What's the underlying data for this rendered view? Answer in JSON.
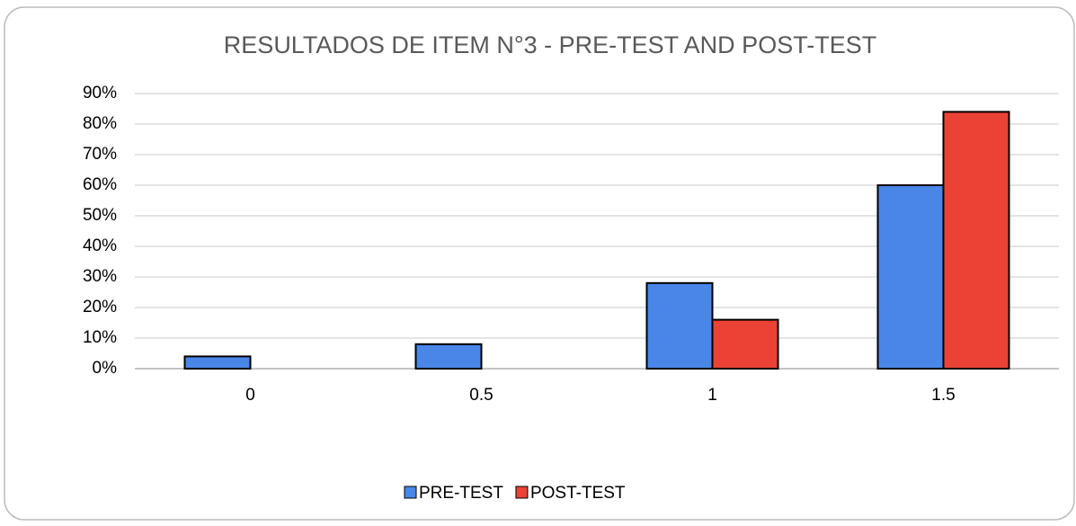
{
  "chart_data": {
    "type": "bar",
    "title": "RESULTADOS DE ITEM N°3 - PRE-TEST AND POST-TEST",
    "categories": [
      "0",
      "0.5",
      "1",
      "1.5"
    ],
    "series": [
      {
        "name": "PRE-TEST",
        "color": "#4a86e8",
        "values": [
          4,
          8,
          28,
          60
        ]
      },
      {
        "name": "POST-TEST",
        "color": "#ea4335",
        "values": [
          0,
          0,
          16,
          84
        ]
      }
    ],
    "ylim": [
      0,
      90
    ],
    "yticks": [
      {
        "value": 0,
        "label": "0%"
      },
      {
        "value": 10,
        "label": "10%"
      },
      {
        "value": 20,
        "label": "20%"
      },
      {
        "value": 30,
        "label": "30%"
      },
      {
        "value": 40,
        "label": "40%"
      },
      {
        "value": 50,
        "label": "50%"
      },
      {
        "value": 60,
        "label": "60%"
      },
      {
        "value": 70,
        "label": "70%"
      },
      {
        "value": 80,
        "label": "80%"
      },
      {
        "value": 90,
        "label": "90%"
      }
    ],
    "grid": true,
    "legend": "bottom"
  }
}
